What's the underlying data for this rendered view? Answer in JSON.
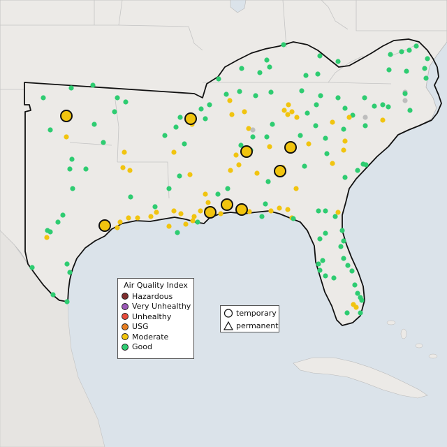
{
  "legend": {
    "title": "Air Quality Index",
    "items": [
      {
        "label": "Hazardous",
        "color": "#7e2e2e"
      },
      {
        "label": "Very Unhealthy",
        "color": "#9b59b6"
      },
      {
        "label": "Unhealthy",
        "color": "#e74c3c"
      },
      {
        "label": "USG",
        "color": "#e67e22"
      },
      {
        "label": "Moderate",
        "color": "#f1c40f"
      },
      {
        "label": "Good",
        "color": "#2ecc71"
      }
    ]
  },
  "shape_legend": {
    "items": [
      {
        "label": "temporary",
        "icon": "circle-icon"
      },
      {
        "label": "permanent",
        "icon": "triangle-icon"
      }
    ]
  },
  "colors": {
    "land": "#eceae7",
    "water": "#dbe3ea",
    "good": "#2ecc71",
    "moderate": "#f1c40f",
    "no_data": "#bdbdbd"
  }
}
